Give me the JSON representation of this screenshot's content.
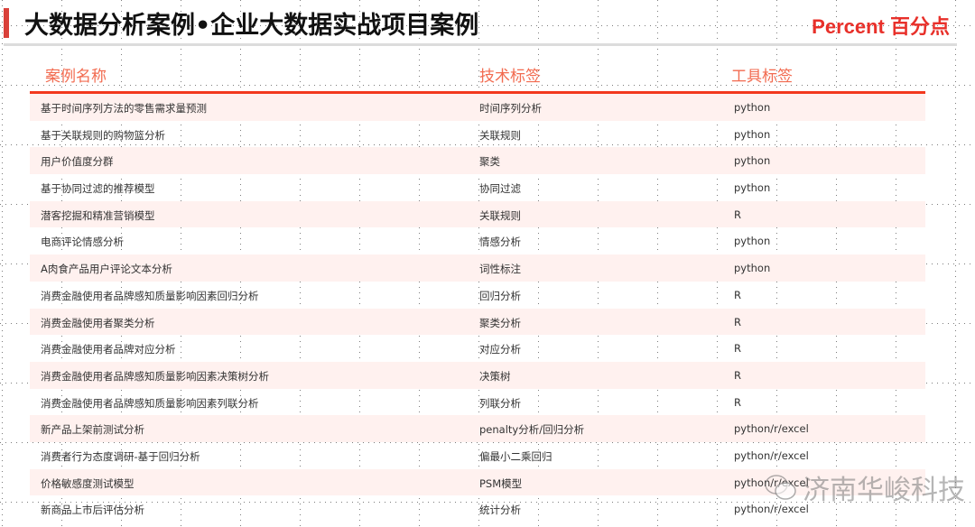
{
  "header": {
    "title": "大数据分析案例•企业大数据实战项目案例",
    "logo": "Percent 百分点"
  },
  "table": {
    "columns": [
      "案例名称",
      "技术标签",
      "工具标签"
    ],
    "rows": [
      [
        "基于时间序列方法的零售需求量预测",
        "时间序列分析",
        "python"
      ],
      [
        "基于关联规则的购物篮分析",
        "关联规则",
        "python"
      ],
      [
        "用户价值度分群",
        "聚类",
        "python"
      ],
      [
        "基于协同过滤的推荐模型",
        "协同过滤",
        "python"
      ],
      [
        "潜客挖掘和精准营销模型",
        "关联规则",
        "R"
      ],
      [
        "电商评论情感分析",
        "情感分析",
        "python"
      ],
      [
        "A肉食产品用户评论文本分析",
        "词性标注",
        "python"
      ],
      [
        "消费金融使用者品牌感知质量影响因素回归分析",
        "回归分析",
        "R"
      ],
      [
        "消费金融使用者聚类分析",
        "聚类分析",
        "R"
      ],
      [
        "消费金融使用者品牌对应分析",
        "对应分析",
        "R"
      ],
      [
        "消费金融使用者品牌感知质量影响因素决策树分析",
        "决策树",
        "R"
      ],
      [
        "消费金融使用者品牌感知质量影响因素列联分析",
        "列联分析",
        "R"
      ],
      [
        "新产品上架前测试分析",
        "penalty分析/回归分析",
        "python/r/excel"
      ],
      [
        "消费者行为态度调研-基于回归分析",
        "偏最小二乘回归",
        "python/r/excel"
      ],
      [
        "价格敏感度测试模型",
        "PSM模型",
        "python/r/excel"
      ],
      [
        "新商品上市后评估分析",
        "统计分析",
        "python/r/excel"
      ]
    ]
  },
  "watermark": {
    "text": "济南华峻科技",
    "icon": "wechat-icon"
  },
  "colors": {
    "accent": "#e8302a",
    "header_text": "#f26b50",
    "row_alt": "#fff1ef"
  }
}
